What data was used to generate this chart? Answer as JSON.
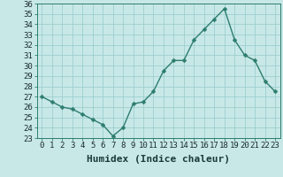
{
  "x": [
    0,
    1,
    2,
    3,
    4,
    5,
    6,
    7,
    8,
    9,
    10,
    11,
    12,
    13,
    14,
    15,
    16,
    17,
    18,
    19,
    20,
    21,
    22,
    23
  ],
  "y": [
    27.0,
    26.5,
    26.0,
    25.8,
    25.3,
    24.8,
    24.3,
    23.2,
    24.0,
    26.3,
    26.5,
    27.5,
    29.5,
    30.5,
    30.5,
    32.5,
    33.5,
    34.5,
    35.5,
    32.5,
    31.0,
    30.5,
    28.5,
    27.5
  ],
  "xlabel": "Humidex (Indice chaleur)",
  "ylim": [
    23,
    36
  ],
  "xlim": [
    -0.5,
    23.5
  ],
  "yticks": [
    23,
    24,
    25,
    26,
    27,
    28,
    29,
    30,
    31,
    32,
    33,
    34,
    35,
    36
  ],
  "xticks": [
    0,
    1,
    2,
    3,
    4,
    5,
    6,
    7,
    8,
    9,
    10,
    11,
    12,
    13,
    14,
    15,
    16,
    17,
    18,
    19,
    20,
    21,
    22,
    23
  ],
  "line_color": "#2d7d6e",
  "marker_color": "#2d7d6e",
  "bg_color": "#c8e8e8",
  "grid_color": "#9ecece",
  "xlabel_fontsize": 8,
  "tick_fontsize": 6.5,
  "line_width": 1.0,
  "marker_size": 2.5
}
